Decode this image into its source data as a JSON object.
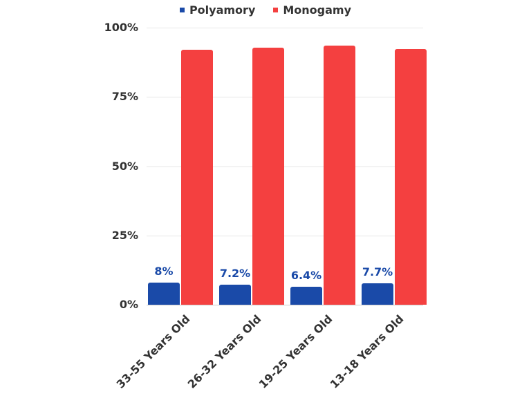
{
  "chart_data": {
    "type": "bar",
    "title": "",
    "xlabel": "",
    "ylabel": "",
    "ylim": [
      0,
      100
    ],
    "yticks": [
      "0%",
      "25%",
      "50%",
      "75%",
      "100%"
    ],
    "grid": true,
    "legend_position": "top",
    "categories": [
      "33-55 Years Old",
      "26-32 Years Old",
      "19-25 Years Old",
      "13-18 Years Old"
    ],
    "series": [
      {
        "name": "Polyamory",
        "color": "#1a4aa8",
        "values": [
          8,
          7.2,
          6.4,
          7.7
        ],
        "labels": [
          "8%",
          "7.2%",
          "6.4%",
          "7.7%"
        ]
      },
      {
        "name": "Monogamy",
        "color": "#f44040",
        "values": [
          92,
          92.8,
          93.6,
          92.3
        ]
      }
    ]
  },
  "legend": {
    "items": [
      {
        "label": "Polyamory",
        "color": "#1a4aa8"
      },
      {
        "label": "Monogamy",
        "color": "#f44040"
      }
    ]
  }
}
